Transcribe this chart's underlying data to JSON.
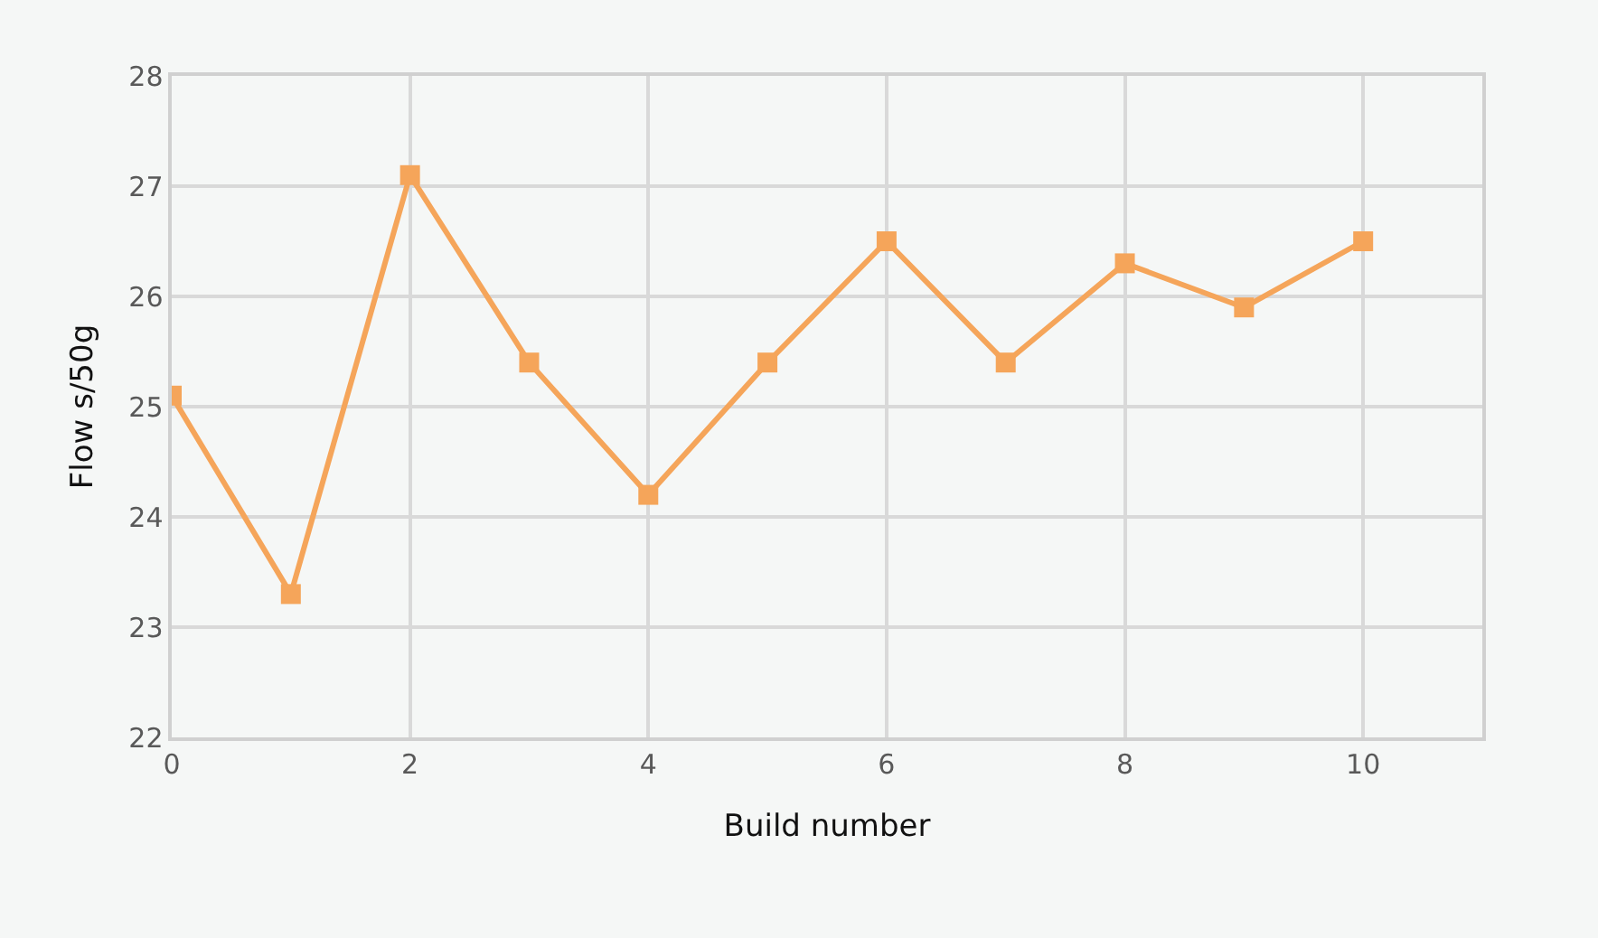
{
  "chart_data": {
    "type": "line",
    "xlabel": "Build number",
    "ylabel": "Flow s/50g",
    "x": [
      0,
      1,
      2,
      3,
      4,
      5,
      6,
      7,
      8,
      9,
      10
    ],
    "series": [
      {
        "color": "#f5a55a",
        "values": [
          25.1,
          23.3,
          27.1,
          25.4,
          24.2,
          25.4,
          26.5,
          25.4,
          26.3,
          25.9,
          26.5
        ]
      }
    ],
    "xlim": [
      0,
      11
    ],
    "xticks": [
      0,
      2,
      4,
      6,
      8,
      10
    ],
    "ylim": [
      22,
      28
    ],
    "yticks": [
      22,
      23,
      24,
      25,
      26,
      27,
      28
    ],
    "grid": true,
    "marker": "square",
    "line_style": "solid"
  }
}
